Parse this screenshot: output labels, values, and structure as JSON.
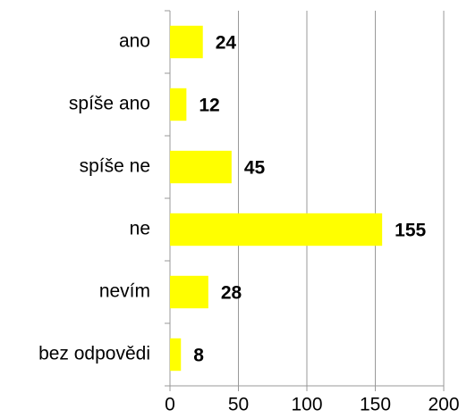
{
  "chart_data": {
    "type": "bar",
    "orientation": "horizontal",
    "categories": [
      "ano",
      "spíše ano",
      "spíše ne",
      "ne",
      "nevím",
      "bez odpovědi"
    ],
    "values": [
      24,
      12,
      45,
      155,
      28,
      8
    ],
    "color": "#ffff00",
    "xlim": [
      0,
      200
    ],
    "xticks": [
      0,
      50,
      100,
      150,
      200
    ],
    "grid": true
  }
}
